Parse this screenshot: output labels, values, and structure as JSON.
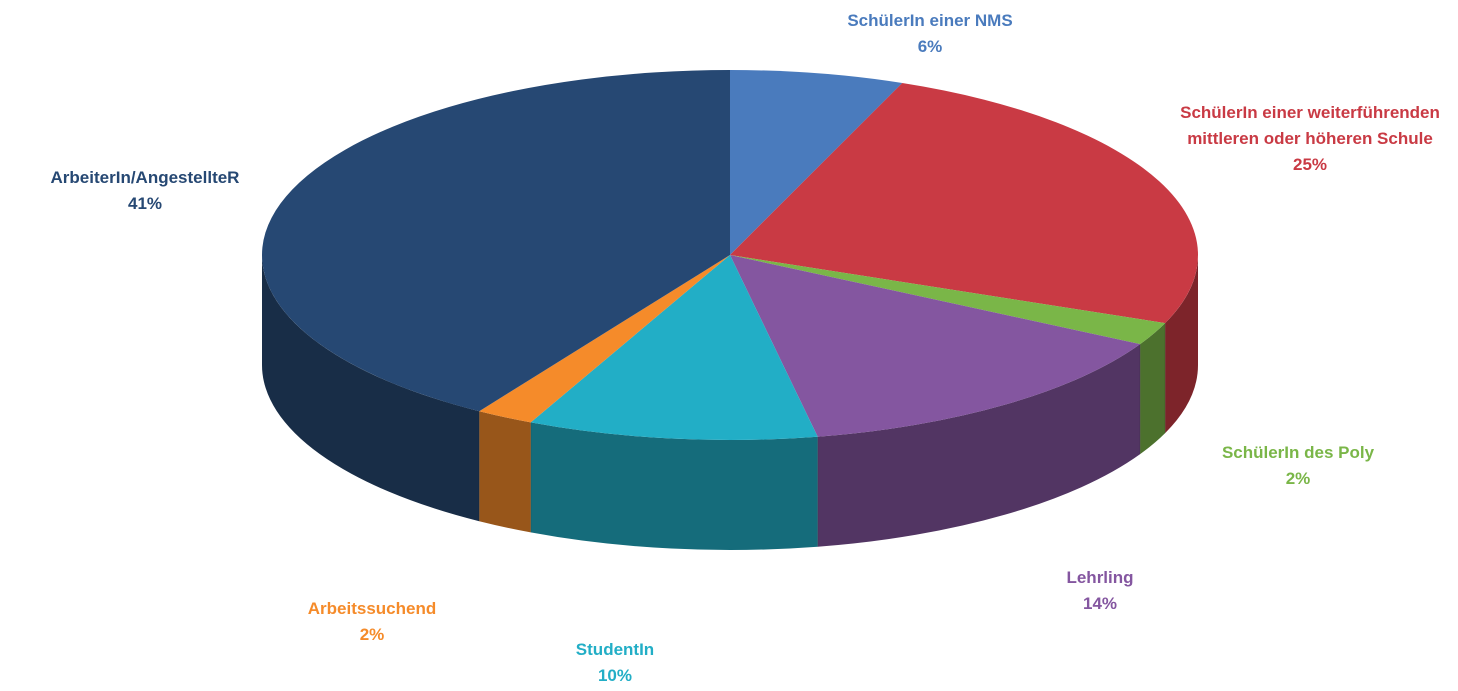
{
  "chart_data": {
    "type": "pie",
    "categories": [
      "SchülerIn einer NMS",
      "SchülerIn einer weiterführenden mittleren oder höheren Schule",
      "SchülerIn des Poly",
      "Lehrling",
      "StudentIn",
      "Arbeitssuchend",
      "ArbeiterIn/AngestellteR"
    ],
    "values": [
      6,
      25,
      2,
      14,
      10,
      2,
      41
    ],
    "value_labels": [
      "6%",
      "25%",
      "2%",
      "14%",
      "10%",
      "2%",
      "41%"
    ],
    "colors": [
      "#4a7bbd",
      "#c93a44",
      "#7ab648",
      "#8456a0",
      "#22aec6",
      "#f58b2a",
      "#264873"
    ]
  }
}
